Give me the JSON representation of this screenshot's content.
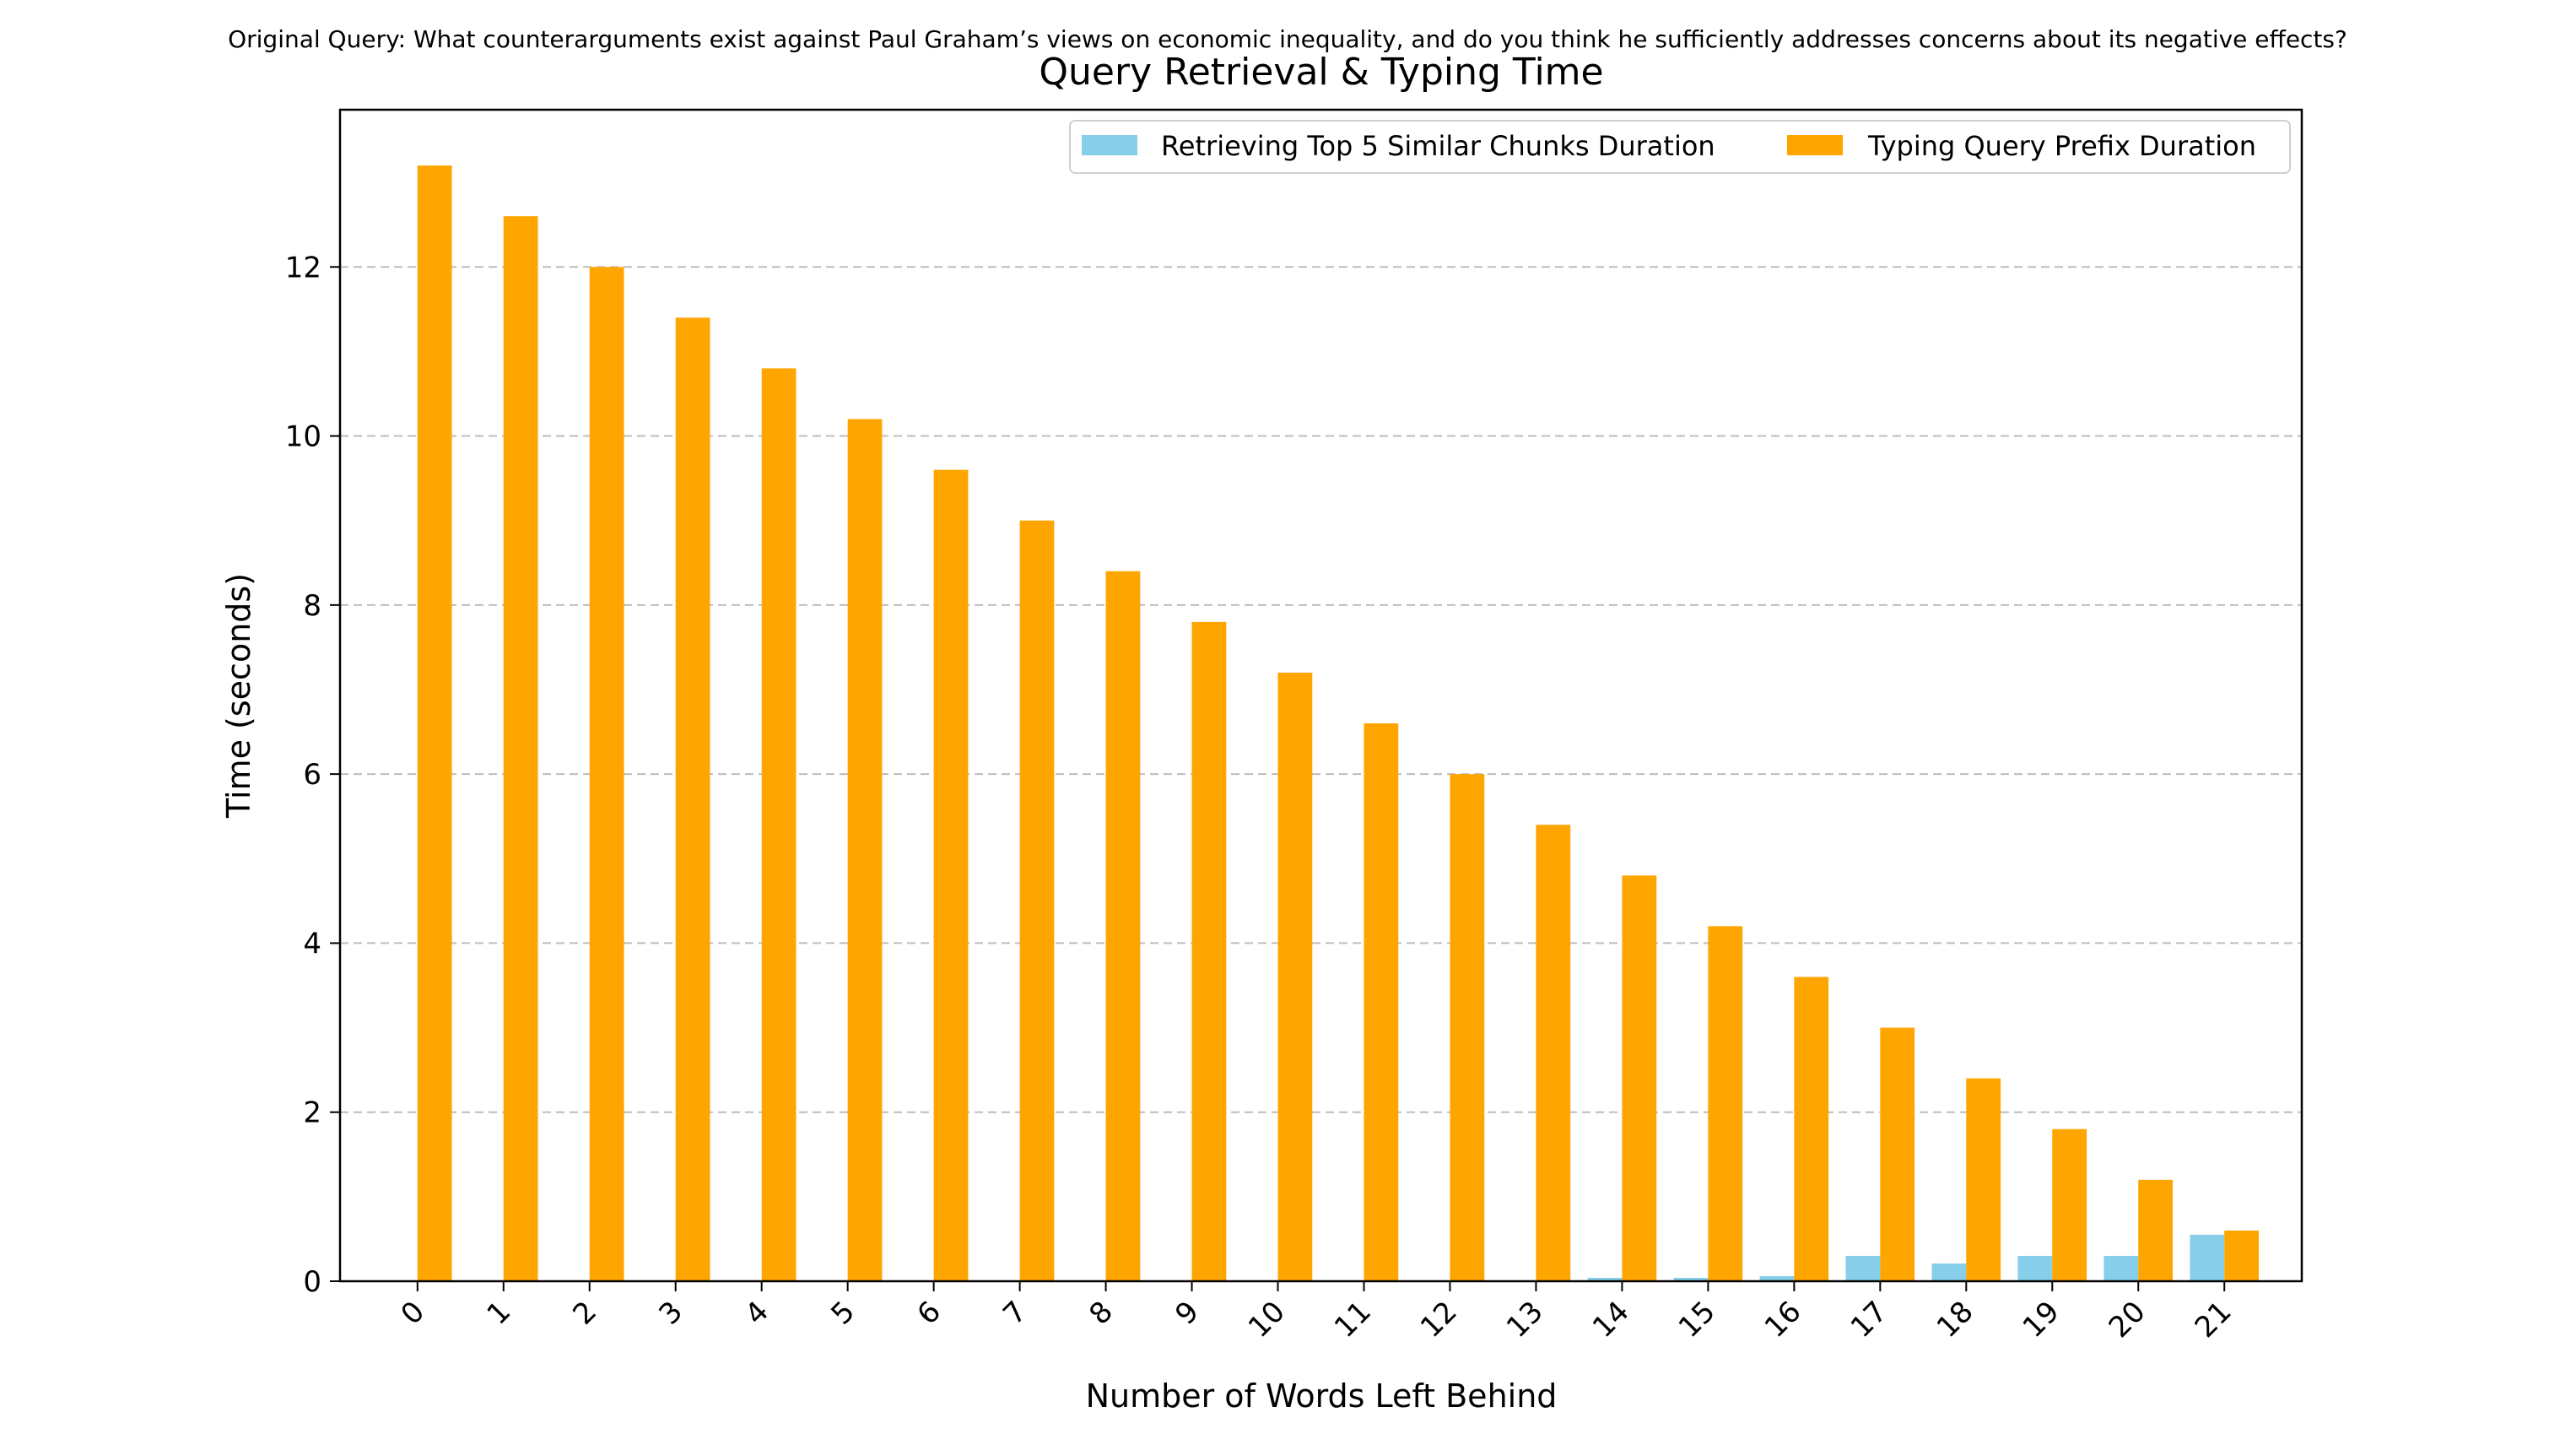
{
  "suptitle": "Original Query: What counterarguments exist against Paul Graham’s views on economic inequality, and do you think he sufficiently addresses concerns about its negative effects?",
  "chart_data": {
    "type": "bar",
    "title": "Query Retrieval & Typing Time",
    "xlabel": "Number of Words Left Behind",
    "ylabel": "Time (seconds)",
    "categories": [
      "0",
      "1",
      "2",
      "3",
      "4",
      "5",
      "6",
      "7",
      "8",
      "9",
      "10",
      "11",
      "12",
      "13",
      "14",
      "15",
      "16",
      "17",
      "18",
      "19",
      "20",
      "21"
    ],
    "ylim": [
      0,
      13.86
    ],
    "yticks": [
      0,
      2,
      4,
      6,
      8,
      10,
      12
    ],
    "grid": "y-dashed",
    "legend_position": "top-right",
    "series": [
      {
        "name": "Retrieving Top 5 Similar Chunks Duration",
        "color": "#87CEEB",
        "values": [
          0,
          0,
          0,
          0,
          0,
          0,
          0,
          0,
          0,
          0,
          0,
          0,
          0,
          0,
          0.04,
          0.04,
          0.06,
          0.3,
          0.21,
          0.3,
          0.3,
          0.55
        ]
      },
      {
        "name": "Typing Query Prefix Duration",
        "color": "#FFA500",
        "values": [
          13.2,
          12.6,
          12.0,
          11.4,
          10.8,
          10.2,
          9.6,
          9.0,
          8.4,
          7.8,
          7.2,
          6.6,
          6.0,
          5.4,
          4.8,
          4.2,
          3.6,
          3.0,
          2.4,
          1.8,
          1.2,
          0.6
        ]
      }
    ]
  }
}
